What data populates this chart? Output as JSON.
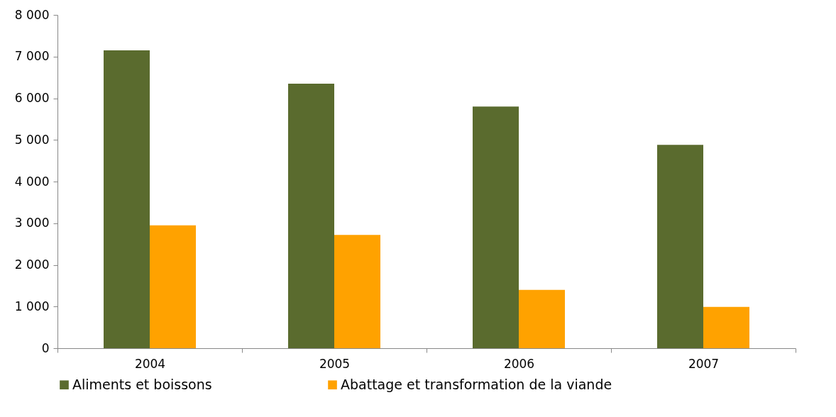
{
  "chart_data": {
    "type": "bar",
    "categories": [
      "2004",
      "2005",
      "2006",
      "2007"
    ],
    "series": [
      {
        "name": "Aliments et boissons",
        "color": "#5a6b2e",
        "values": [
          7150,
          6350,
          5800,
          4880
        ]
      },
      {
        "name": "Abattage et transformation de la viande",
        "color": "#ffa200",
        "values": [
          2950,
          2720,
          1400,
          990
        ]
      }
    ],
    "ylim": [
      0,
      8000
    ],
    "yticks": [
      {
        "value": 0,
        "label": "0"
      },
      {
        "value": 1000,
        "label": "1 000"
      },
      {
        "value": 2000,
        "label": "2 000"
      },
      {
        "value": 3000,
        "label": "3 000"
      },
      {
        "value": 4000,
        "label": "4 000"
      },
      {
        "value": 5000,
        "label": "5 000"
      },
      {
        "value": 6000,
        "label": "6 000"
      },
      {
        "value": 7000,
        "label": "7 000"
      },
      {
        "value": 8000,
        "label": "8 000"
      }
    ],
    "grid": false,
    "legend": "bottom"
  }
}
